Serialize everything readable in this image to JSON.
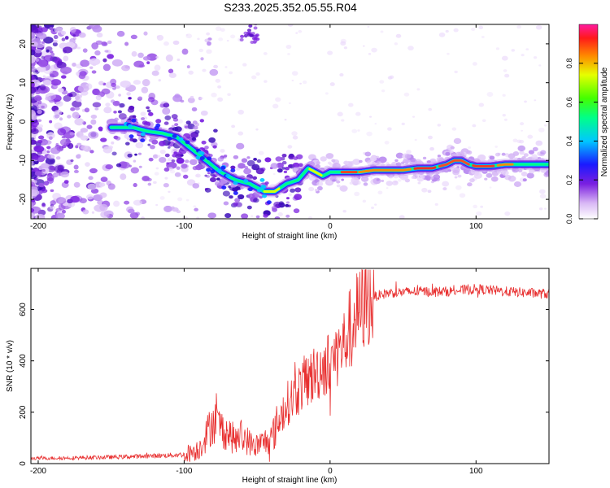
{
  "title": "S233.2025.352.05.55.R04",
  "chart_data": [
    {
      "type": "heatmap",
      "xlabel": "Height of straight line (km)",
      "ylabel": "Frequency (Hz)",
      "xlim": [
        -205,
        150
      ],
      "ylim": [
        -25,
        25
      ],
      "x_ticks": [
        -200,
        -100,
        0,
        100
      ],
      "y_ticks": [
        -20,
        -10,
        0,
        10,
        20
      ],
      "colorbar": {
        "label": "Normalized spectral amplitude",
        "range": [
          0.0,
          1.0
        ],
        "ticks": [
          "0.0",
          "0.2",
          "0.4",
          "0.6",
          "0.8"
        ]
      },
      "ridge": {
        "description_units": "frequency (Hz) of the main spectral ridge vs height (km)",
        "x": [
          -145,
          -135,
          -125,
          -115,
          -105,
          -95,
          -85,
          -75,
          -65,
          -55,
          -45,
          -38,
          -30,
          -22,
          -15,
          -10,
          -5,
          0,
          10,
          20,
          30,
          40,
          50,
          60,
          70,
          80,
          85,
          90,
          95,
          100,
          110,
          120,
          130,
          140,
          150
        ],
        "y": [
          -1.5,
          -1.5,
          -2.5,
          -3,
          -4,
          -7,
          -10,
          -13,
          -15,
          -16,
          -18,
          -18,
          -16,
          -15,
          -12,
          -13,
          -14,
          -13,
          -13,
          -13,
          -12.5,
          -12.5,
          -12.5,
          -12,
          -12,
          -11,
          -10,
          -10,
          -11,
          -11.5,
          -11.5,
          -11,
          -11,
          -11,
          -11
        ]
      }
    },
    {
      "type": "line",
      "xlabel": "Height of straight line (km)",
      "ylabel": "SNR (10 * v/v)",
      "xlim": [
        -205,
        150
      ],
      "ylim": [
        0,
        760
      ],
      "x_ticks": [
        -200,
        -100,
        0,
        100
      ],
      "y_ticks": [
        0,
        200,
        400,
        600
      ],
      "series": [
        {
          "name": "SNR",
          "color": "#e83030",
          "envelope_x": [
            -205,
            -180,
            -150,
            -120,
            -100,
            -90,
            -85,
            -80,
            -75,
            -70,
            -65,
            -60,
            -55,
            -50,
            -45,
            -40,
            -35,
            -30,
            -25,
            -20,
            -15,
            -10,
            -5,
            0,
            5,
            10,
            15,
            20,
            25,
            30,
            40,
            60,
            80,
            100,
            120,
            150
          ],
          "envelope_y": [
            20,
            22,
            25,
            30,
            35,
            55,
            110,
            170,
            140,
            120,
            90,
            110,
            80,
            70,
            85,
            100,
            170,
            230,
            260,
            300,
            330,
            350,
            380,
            390,
            430,
            470,
            550,
            590,
            630,
            650,
            665,
            670,
            670,
            680,
            670,
            660
          ]
        }
      ]
    }
  ]
}
